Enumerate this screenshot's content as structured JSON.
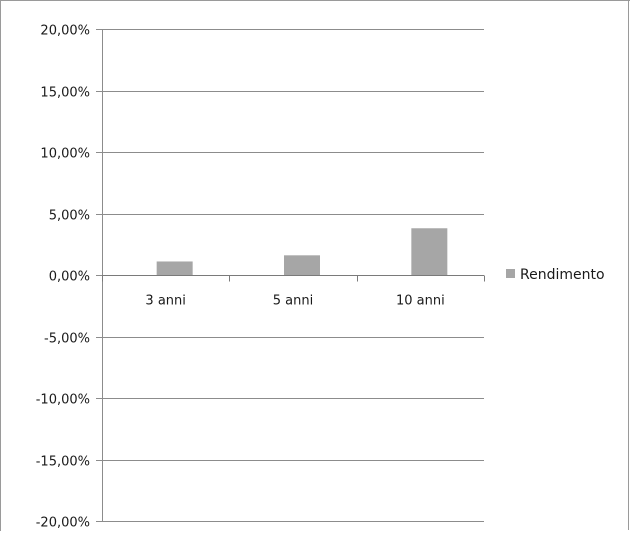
{
  "chart_data": {
    "type": "bar",
    "categories": [
      "3 anni",
      "5 anni",
      "10 anni"
    ],
    "series": [
      {
        "name": "Rendimento",
        "values": [
          1.1,
          1.6,
          3.8
        ],
        "color": "#a6a6a6"
      }
    ],
    "ylim": [
      -20,
      20
    ],
    "yticks": [
      20,
      15,
      10,
      5,
      0,
      -5,
      -10,
      -15,
      -20
    ],
    "ytick_labels": [
      "20,00%",
      "15,00%",
      "10,00%",
      "5,00%",
      "0,00%",
      "-5,00%",
      "-10,00%",
      "-15,00%",
      "-20,00%"
    ],
    "grid": true,
    "grid_color": "#8c8c8c",
    "legend": {
      "position": "right",
      "label": "Rendimento"
    },
    "title": "",
    "xlabel": "",
    "ylabel": ""
  }
}
